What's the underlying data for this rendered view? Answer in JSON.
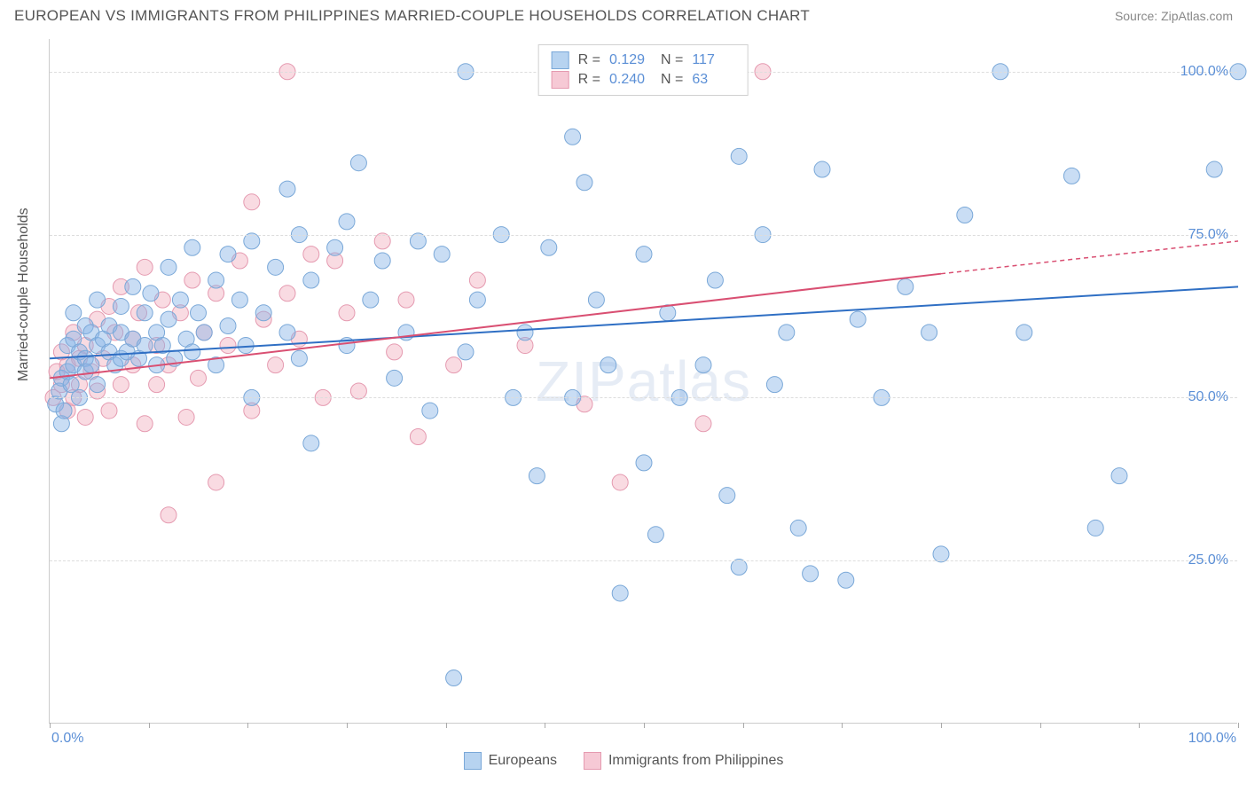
{
  "title": "EUROPEAN VS IMMIGRANTS FROM PHILIPPINES MARRIED-COUPLE HOUSEHOLDS CORRELATION CHART",
  "source": "Source: ZipAtlas.com",
  "watermark_main": "ZIP",
  "watermark_sub": "atlas",
  "yaxis_label": "Married-couple Households",
  "xrange": [
    0,
    100
  ],
  "yrange": [
    0,
    105
  ],
  "yticks": [
    {
      "v": 25,
      "label": "25.0%"
    },
    {
      "v": 50,
      "label": "50.0%"
    },
    {
      "v": 75,
      "label": "75.0%"
    },
    {
      "v": 100,
      "label": "100.0%"
    }
  ],
  "xtick_positions": [
    0,
    8.33,
    16.67,
    25,
    33.33,
    41.67,
    50,
    58.33,
    66.67,
    75,
    83.33,
    91.67,
    100
  ],
  "xtick_labels": {
    "left": "0.0%",
    "right": "100.0%"
  },
  "series_a": {
    "name": "Europeans",
    "color_fill": "rgba(135, 180, 230, 0.45)",
    "color_stroke": "#7aa8d8",
    "swatch_fill": "#b7d3f0",
    "swatch_border": "#7aa8d8",
    "R": "0.129",
    "N": "117",
    "trend": {
      "x1": 0,
      "y1": 56,
      "x2": 100,
      "y2": 67,
      "stroke": "#2f6fc4",
      "width": 2
    },
    "marker_radius": 9,
    "points": [
      [
        0.5,
        49
      ],
      [
        0.8,
        51
      ],
      [
        1,
        46
      ],
      [
        1,
        53
      ],
      [
        1.2,
        48
      ],
      [
        1.5,
        58
      ],
      [
        1.5,
        54
      ],
      [
        1.8,
        52
      ],
      [
        2,
        55
      ],
      [
        2,
        59
      ],
      [
        2,
        63
      ],
      [
        2.5,
        50
      ],
      [
        2.5,
        57
      ],
      [
        3,
        56
      ],
      [
        3,
        61
      ],
      [
        3,
        54
      ],
      [
        3.5,
        55
      ],
      [
        3.5,
        60
      ],
      [
        4,
        58
      ],
      [
        4,
        52
      ],
      [
        4,
        65
      ],
      [
        4.5,
        59
      ],
      [
        5,
        57
      ],
      [
        5,
        61
      ],
      [
        5.5,
        55
      ],
      [
        6,
        60
      ],
      [
        6,
        56
      ],
      [
        6,
        64
      ],
      [
        6.5,
        57
      ],
      [
        7,
        67
      ],
      [
        7,
        59
      ],
      [
        7.5,
        56
      ],
      [
        8,
        63
      ],
      [
        8,
        58
      ],
      [
        8.5,
        66
      ],
      [
        9,
        60
      ],
      [
        9,
        55
      ],
      [
        9.5,
        58
      ],
      [
        10,
        70
      ],
      [
        10,
        62
      ],
      [
        10.5,
        56
      ],
      [
        11,
        65
      ],
      [
        11.5,
        59
      ],
      [
        12,
        73
      ],
      [
        12,
        57
      ],
      [
        12.5,
        63
      ],
      [
        13,
        60
      ],
      [
        14,
        68
      ],
      [
        14,
        55
      ],
      [
        15,
        72
      ],
      [
        15,
        61
      ],
      [
        16,
        65
      ],
      [
        16.5,
        58
      ],
      [
        17,
        74
      ],
      [
        17,
        50
      ],
      [
        18,
        63
      ],
      [
        19,
        70
      ],
      [
        20,
        82
      ],
      [
        20,
        60
      ],
      [
        21,
        75
      ],
      [
        21,
        56
      ],
      [
        22,
        68
      ],
      [
        22,
        43
      ],
      [
        24,
        73
      ],
      [
        25,
        77
      ],
      [
        25,
        58
      ],
      [
        26,
        86
      ],
      [
        27,
        65
      ],
      [
        28,
        71
      ],
      [
        29,
        53
      ],
      [
        30,
        60
      ],
      [
        31,
        74
      ],
      [
        32,
        48
      ],
      [
        33,
        72
      ],
      [
        34,
        7
      ],
      [
        35,
        57
      ],
      [
        35,
        100
      ],
      [
        36,
        65
      ],
      [
        38,
        75
      ],
      [
        39,
        50
      ],
      [
        40,
        60
      ],
      [
        41,
        38
      ],
      [
        42,
        73
      ],
      [
        44,
        90
      ],
      [
        44,
        50
      ],
      [
        45,
        83
      ],
      [
        46,
        65
      ],
      [
        47,
        55
      ],
      [
        48,
        20
      ],
      [
        50,
        72
      ],
      [
        50,
        40
      ],
      [
        51,
        29
      ],
      [
        52,
        63
      ],
      [
        53,
        50
      ],
      [
        55,
        55
      ],
      [
        56,
        68
      ],
      [
        57,
        35
      ],
      [
        58,
        24
      ],
      [
        58,
        87
      ],
      [
        60,
        75
      ],
      [
        61,
        52
      ],
      [
        62,
        60
      ],
      [
        63,
        30
      ],
      [
        64,
        23
      ],
      [
        65,
        85
      ],
      [
        67,
        22
      ],
      [
        68,
        62
      ],
      [
        70,
        50
      ],
      [
        72,
        67
      ],
      [
        74,
        60
      ],
      [
        75,
        26
      ],
      [
        77,
        78
      ],
      [
        80,
        100
      ],
      [
        82,
        60
      ],
      [
        86,
        84
      ],
      [
        88,
        30
      ],
      [
        90,
        38
      ],
      [
        98,
        85
      ],
      [
        100,
        100
      ]
    ]
  },
  "series_b": {
    "name": "Immigrants from Philippines",
    "color_fill": "rgba(240, 160, 180, 0.38)",
    "color_stroke": "#e59ab0",
    "swatch_fill": "#f6c9d5",
    "swatch_border": "#e59ab0",
    "R": "0.240",
    "N": "63",
    "trend_solid": {
      "x1": 0,
      "y1": 53,
      "x2": 75,
      "y2": 69,
      "stroke": "#d94f72",
      "width": 2
    },
    "trend_dash": {
      "x1": 75,
      "y1": 69,
      "x2": 100,
      "y2": 74,
      "stroke": "#d94f72",
      "width": 1.5,
      "dash": "5,4"
    },
    "marker_radius": 9,
    "points": [
      [
        0.3,
        50
      ],
      [
        0.6,
        54
      ],
      [
        1,
        52
      ],
      [
        1,
        57
      ],
      [
        1.5,
        48
      ],
      [
        1.5,
        55
      ],
      [
        2,
        50
      ],
      [
        2,
        60
      ],
      [
        2.5,
        52
      ],
      [
        2.5,
        56
      ],
      [
        3,
        47
      ],
      [
        3,
        58
      ],
      [
        3.5,
        54
      ],
      [
        4,
        51
      ],
      [
        4,
        62
      ],
      [
        4.5,
        56
      ],
      [
        5,
        48
      ],
      [
        5,
        64
      ],
      [
        5.5,
        60
      ],
      [
        6,
        52
      ],
      [
        6,
        67
      ],
      [
        7,
        55
      ],
      [
        7,
        59
      ],
      [
        7.5,
        63
      ],
      [
        8,
        46
      ],
      [
        8,
        70
      ],
      [
        9,
        58
      ],
      [
        9,
        52
      ],
      [
        9.5,
        65
      ],
      [
        10,
        32
      ],
      [
        10,
        55
      ],
      [
        11,
        63
      ],
      [
        11.5,
        47
      ],
      [
        12,
        68
      ],
      [
        12.5,
        53
      ],
      [
        13,
        60
      ],
      [
        14,
        37
      ],
      [
        14,
        66
      ],
      [
        15,
        58
      ],
      [
        16,
        71
      ],
      [
        17,
        48
      ],
      [
        17,
        80
      ],
      [
        18,
        62
      ],
      [
        19,
        55
      ],
      [
        20,
        100
      ],
      [
        20,
        66
      ],
      [
        21,
        59
      ],
      [
        22,
        72
      ],
      [
        23,
        50
      ],
      [
        24,
        71
      ],
      [
        25,
        63
      ],
      [
        26,
        51
      ],
      [
        28,
        74
      ],
      [
        29,
        57
      ],
      [
        30,
        65
      ],
      [
        31,
        44
      ],
      [
        34,
        55
      ],
      [
        36,
        68
      ],
      [
        40,
        58
      ],
      [
        45,
        49
      ],
      [
        48,
        37
      ],
      [
        55,
        46
      ],
      [
        60,
        100
      ]
    ]
  },
  "legend_stats_label_R": "R =",
  "legend_stats_label_N": "N ="
}
